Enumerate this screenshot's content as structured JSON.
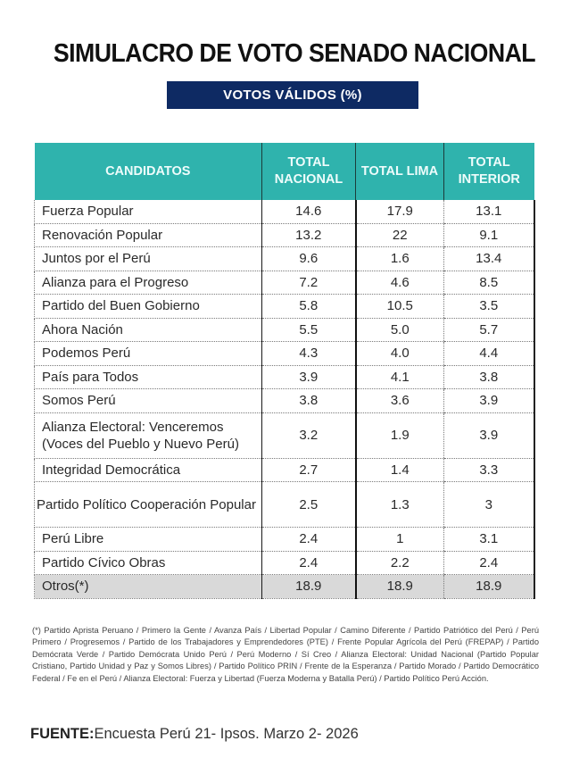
{
  "header": {
    "title": "SIMULACRO DE VOTO SENADO NACIONAL",
    "subtitle": "VOTOS VÁLIDOS (%)"
  },
  "colors": {
    "header_teal": "#2fb3ad",
    "subtitle_navy": "#0e2a63",
    "others_row_gray": "#d9d9d9"
  },
  "table": {
    "columns": [
      "CANDIDATOS",
      "TOTAL NACIONAL",
      "TOTAL LIMA",
      "TOTAL INTERIOR"
    ],
    "rows": [
      {
        "name": "Fuerza Popular",
        "nacional": "14.6",
        "lima": "17.9",
        "interior": "13.1"
      },
      {
        "name": "Renovación Popular",
        "nacional": "13.2",
        "lima": "22",
        "interior": "9.1"
      },
      {
        "name": "Juntos por el Perú",
        "nacional": "9.6",
        "lima": "1.6",
        "interior": "13.4"
      },
      {
        "name": "Alianza para el Progreso",
        "nacional": "7.2",
        "lima": "4.6",
        "interior": "8.5"
      },
      {
        "name": "Partido del Buen Gobierno",
        "nacional": "5.8",
        "lima": "10.5",
        "interior": "3.5"
      },
      {
        "name": "Ahora Nación",
        "nacional": "5.5",
        "lima": "5.0",
        "interior": "5.7"
      },
      {
        "name": "Podemos Perú",
        "nacional": "4.3",
        "lima": "4.0",
        "interior": "4.4"
      },
      {
        "name": "País para Todos",
        "nacional": "3.9",
        "lima": "4.1",
        "interior": "3.8"
      },
      {
        "name": "Somos Perú",
        "nacional": "3.8",
        "lima": "3.6",
        "interior": "3.9"
      },
      {
        "name": "Alianza Electoral: Venceremos (Voces del Pueblo y Nuevo Perú)",
        "nacional": "3.2",
        "lima": "1.9",
        "interior": "3.9"
      },
      {
        "name": "Integridad Democrática",
        "nacional": "2.7",
        "lima": "1.4",
        "interior": "3.3"
      },
      {
        "name": "Partido Político Cooperación Popular",
        "nacional": "2.5",
        "lima": "1.3",
        "interior": "3"
      },
      {
        "name": "Perú Libre",
        "nacional": "2.4",
        "lima": "1",
        "interior": "3.1"
      },
      {
        "name": "Partido Cívico Obras",
        "nacional": "2.4",
        "lima": "2.2",
        "interior": "2.4"
      },
      {
        "name": "Otros(*)",
        "nacional": "18.9",
        "lima": "18.9",
        "interior": "18.9"
      }
    ]
  },
  "footnote": "(*) Partido Aprista Peruano / Primero la Gente / Avanza País / Libertad Popular / Camino Diferente / Partido Patriótico del Perú / Perú Primero / Progresemos / Partido de los Trabajadores y Emprendedores (PTE) / Frente Popular Agrícola del Perú (FREPAP) / Partido Demócrata Verde / Partido Demócrata Unido Perú / Perú Moderno / Sí Creo / Alianza Electoral: Unidad Nacional (Partido Popular Cristiano, Partido Unidad y Paz y Somos Libres) / Partido Político PRIN / Frente de la Esperanza / Partido Morado / Partido Democrático Federal / Fe en el Perú / Alianza Electoral: Fuerza y Libertad (Fuerza Moderna y Batalla Perú) / Partido Político Perú Acción.",
  "source": {
    "label": "FUENTE:",
    "text": "Encuesta Perú 21- Ipsos. Marzo 2- 2026"
  }
}
